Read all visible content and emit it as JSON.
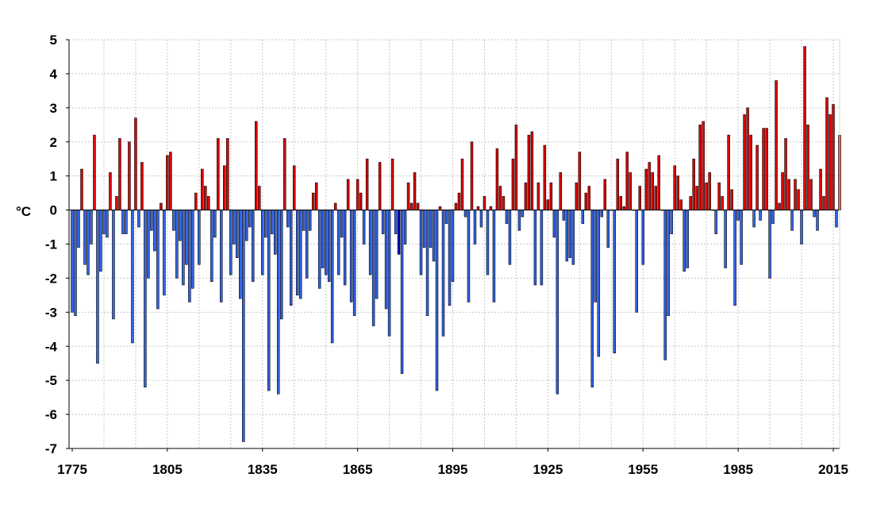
{
  "chart_data": {
    "type": "bar",
    "title": "",
    "xlabel": "",
    "ylabel": "°C",
    "ylim": [
      -7,
      5
    ],
    "xlim": [
      1774,
      2017
    ],
    "x_ticks": [
      1775,
      1805,
      1835,
      1865,
      1895,
      1925,
      1955,
      1985,
      2015
    ],
    "y_ticks": [
      5,
      4,
      3,
      2,
      1,
      0,
      -1,
      -2,
      -3,
      -4,
      -5,
      -6,
      -7
    ],
    "grid": true,
    "legend": "none",
    "colors": {
      "positive": "#e00000",
      "negative": "#3366ee",
      "highlight": "#0000cc",
      "grid": "#c8c8c8",
      "axis": "#000000"
    },
    "start_year": 1775,
    "values": [
      -3.0,
      -3.1,
      -1.1,
      1.2,
      -1.6,
      -1.9,
      -1.0,
      2.2,
      -4.5,
      -1.8,
      -0.7,
      -0.8,
      1.1,
      -3.2,
      0.4,
      2.1,
      -0.7,
      -0.7,
      2.0,
      -3.9,
      2.7,
      -0.5,
      1.4,
      -5.2,
      -2.0,
      -0.6,
      -1.2,
      -2.9,
      0.2,
      -2.5,
      1.6,
      1.7,
      -0.6,
      -2.0,
      -0.9,
      -2.2,
      -1.6,
      -2.7,
      -2.3,
      0.5,
      -1.6,
      1.2,
      0.7,
      0.4,
      -2.1,
      -0.8,
      2.1,
      -2.7,
      1.3,
      2.1,
      -1.9,
      -1.0,
      -1.4,
      -2.6,
      -6.8,
      -0.9,
      -0.5,
      -2.1,
      2.6,
      0.7,
      -1.9,
      -0.8,
      -5.3,
      -0.7,
      -1.3,
      -5.4,
      -3.2,
      2.1,
      -0.5,
      -2.8,
      1.3,
      -2.5,
      -2.6,
      -0.6,
      -2.0,
      -0.6,
      0.5,
      0.8,
      -2.3,
      -1.7,
      -1.9,
      -2.1,
      -3.9,
      0.2,
      -1.9,
      -0.8,
      -2.2,
      0.9,
      -2.7,
      -3.1,
      0.9,
      0.5,
      -1.0,
      1.5,
      -1.9,
      -3.4,
      -2.6,
      1.4,
      -0.7,
      -2.9,
      -3.7,
      1.5,
      -0.7,
      -1.3,
      -4.8,
      -1.0,
      0.8,
      0.2,
      1.1,
      0.2,
      -1.9,
      -1.1,
      -3.1,
      -1.1,
      -1.5,
      -5.3,
      0.1,
      -3.7,
      -0.4,
      -2.8,
      -2.1,
      0.2,
      0.5,
      1.5,
      -0.2,
      -2.7,
      2.0,
      -1.0,
      0.1,
      -0.5,
      0.4,
      -1.9,
      0.1,
      -2.7,
      1.8,
      0.7,
      0.4,
      -0.4,
      -1.6,
      1.5,
      2.5,
      -0.6,
      -0.2,
      0.8,
      2.2,
      2.3,
      -2.2,
      0.8,
      -2.2,
      1.9,
      0.3,
      0.8,
      -0.8,
      -5.4,
      1.1,
      -0.3,
      -1.5,
      -1.4,
      -1.6,
      0.8,
      1.7,
      -0.4,
      0.5,
      0.7,
      -5.2,
      -2.7,
      -4.3,
      -0.2,
      0.9,
      -1.1,
      0.0,
      -4.2,
      1.5,
      0.4,
      0.1,
      1.7,
      1.1,
      0.0,
      -3.0,
      0.7,
      -1.6,
      1.2,
      1.4,
      1.1,
      0.7,
      1.6,
      0.0,
      -4.4,
      -3.1,
      -0.7,
      1.3,
      1.0,
      0.3,
      -1.8,
      -1.7,
      0.4,
      1.5,
      0.7,
      2.5,
      2.6,
      0.8,
      1.1,
      0.0,
      -0.7,
      0.8,
      0.4,
      -1.7,
      2.2,
      0.6,
      -2.8,
      -0.3,
      -1.6,
      2.8,
      3.0,
      2.2,
      -0.5,
      1.9,
      -0.3,
      2.4,
      2.4,
      -2.0,
      -0.4,
      3.8,
      0.2,
      1.1,
      2.1,
      0.9,
      -0.6,
      0.9,
      0.6,
      -1.0,
      4.8,
      2.5,
      0.9,
      -0.2,
      -0.6,
      1.2,
      0.4,
      3.3,
      2.8,
      3.1,
      -0.5,
      2.2
    ],
    "highlight_years": [
      1878,
      1910
    ]
  }
}
